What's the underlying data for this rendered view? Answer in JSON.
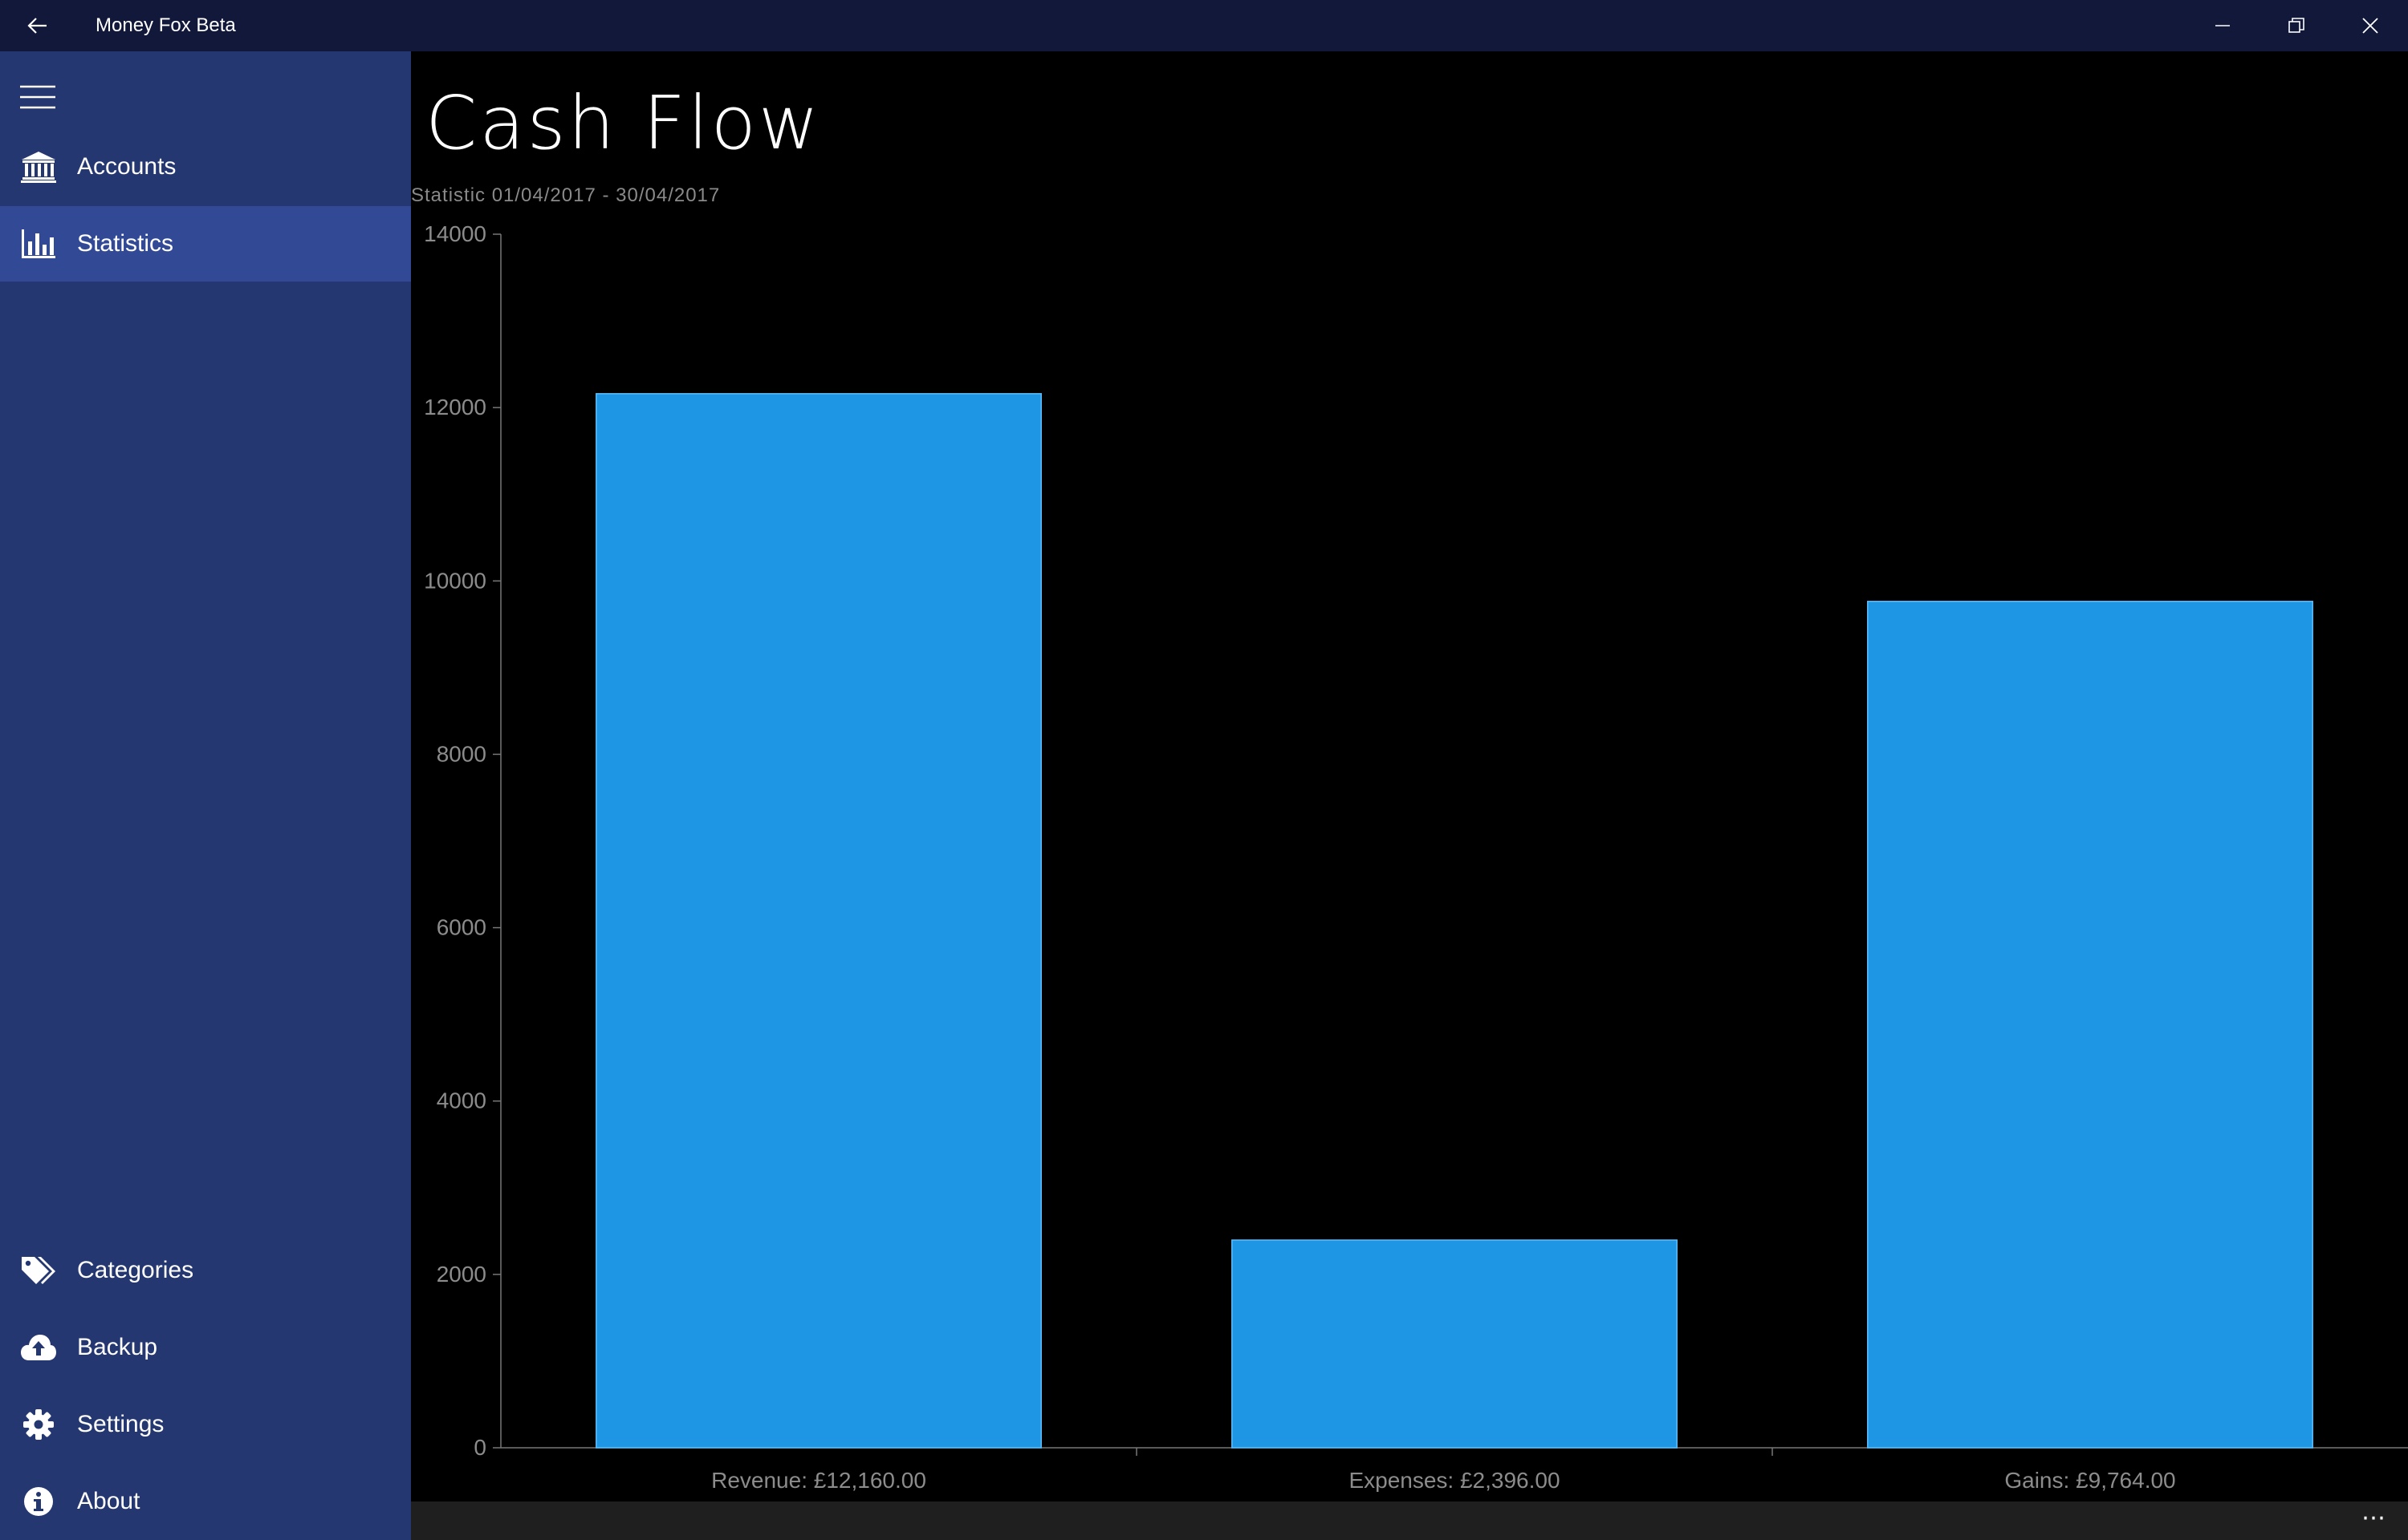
{
  "window": {
    "title": "Money Fox Beta"
  },
  "sidebar": {
    "top_items": [
      {
        "label": "Accounts",
        "icon": "bank-icon",
        "selected": false
      },
      {
        "label": "Statistics",
        "icon": "bar-chart-icon",
        "selected": true
      }
    ],
    "bottom_items": [
      {
        "label": "Categories",
        "icon": "tags-icon"
      },
      {
        "label": "Backup",
        "icon": "cloud-upload-icon"
      },
      {
        "label": "Settings",
        "icon": "gear-icon"
      },
      {
        "label": "About",
        "icon": "info-icon"
      }
    ]
  },
  "main": {
    "title": "Cash Flow",
    "subtitle": "Statistic 01/04/2017 - 30/04/2017"
  },
  "colors": {
    "titlebar": "#12183a",
    "sidebar": "#253770",
    "sidebar_selected": "#324a96",
    "bar_fill": "#1e96e3",
    "axis": "#777777"
  },
  "chart_data": {
    "type": "bar",
    "categories": [
      "Revenue: £12,160.00",
      "Expenses: £2,396.00",
      "Gains: £9,764.00"
    ],
    "values": [
      12160,
      2396,
      9764
    ],
    "ylim": [
      0,
      14000
    ],
    "yticks": [
      0,
      2000,
      4000,
      6000,
      8000,
      10000,
      12000,
      14000
    ],
    "grid": false
  },
  "bottom_bar": {
    "more_label": "⋯"
  }
}
